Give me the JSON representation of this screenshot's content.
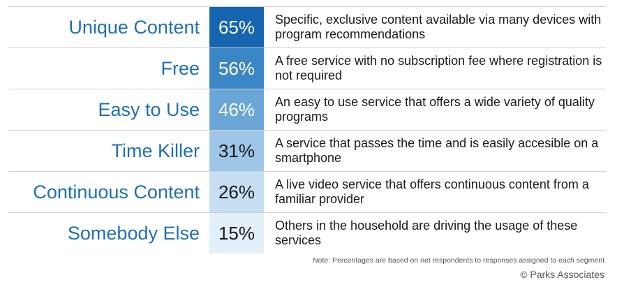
{
  "chart_data": {
    "type": "table",
    "rows": [
      {
        "label": "Unique Content",
        "value": 65,
        "display": "65%",
        "description": "Specific, exclusive content available via many devices with program recommendations",
        "color": "#1565b0",
        "text_color": "#ffffff"
      },
      {
        "label": "Free",
        "value": 56,
        "display": "56%",
        "description": "A free service with no subscription fee where registration is not required",
        "color": "#3a86c7",
        "text_color": "#ffffff"
      },
      {
        "label": "Easy to Use",
        "value": 46,
        "display": "46%",
        "description": "An easy to use service that offers a wide variety of quality programs",
        "color": "#6aa7d8",
        "text_color": "#ffffff"
      },
      {
        "label": "Time Killer",
        "value": 31,
        "display": "31%",
        "description": "A service that passes the time and is easily accesible on a smartphone",
        "color": "#9ec6e8",
        "text_color": "#1a1a1a"
      },
      {
        "label": "Continuous Content",
        "value": 26,
        "display": "26%",
        "description": "A live video service that offers continuous content from a familiar provider",
        "color": "#c6def2",
        "text_color": "#1a1a1a"
      },
      {
        "label": "Somebody Else",
        "value": 15,
        "display": "15%",
        "description": "Others in the household are driving the usage of these services",
        "color": "#e3eff9",
        "text_color": "#1a1a1a"
      }
    ],
    "note": "Note: Percentages are based on net respondents to responses assigned to each segment",
    "credit": "© Parks Associates"
  }
}
